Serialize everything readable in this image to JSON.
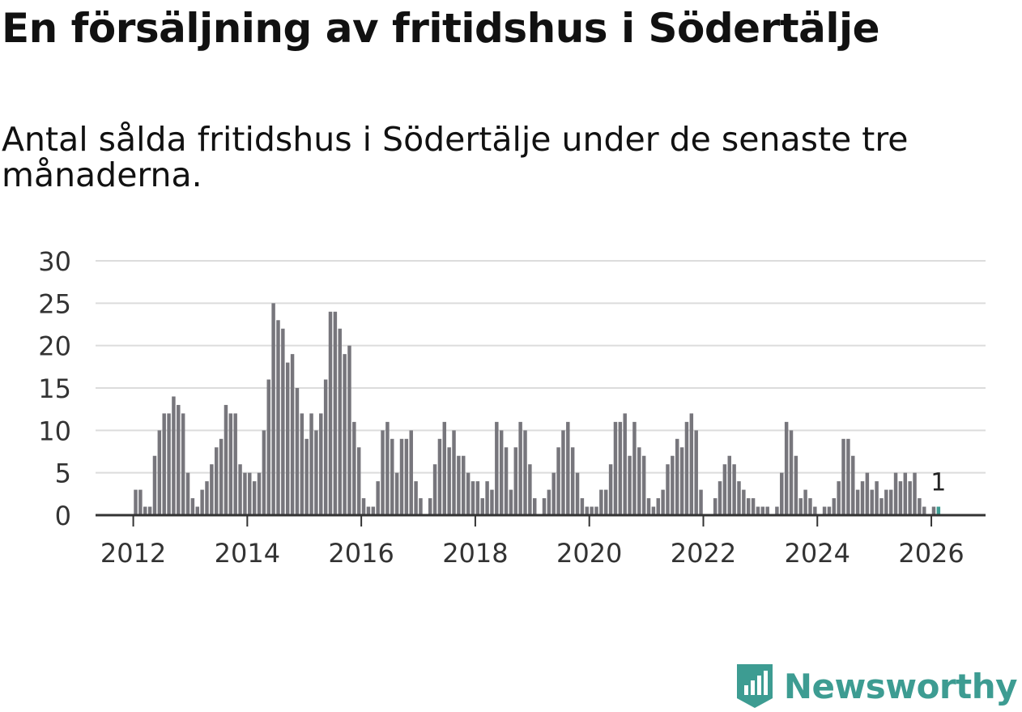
{
  "header": {
    "title": "En försäljning av fritidshus i Södertälje",
    "subtitle": "Antal sålda fritidshus i Södertälje under de senaste tre månaderna."
  },
  "brand": {
    "name": "Newsworthy",
    "color": "#3d9c92"
  },
  "colors": {
    "bar": "#77767c",
    "highlight": "#3d9c92",
    "grid": "#dcdcdc",
    "axis": "#333333"
  },
  "chart_data": {
    "type": "bar",
    "title": "Antal sålda fritidshus i Södertälje under de senaste tre månaderna.",
    "xlabel": "",
    "ylabel": "",
    "ylim": [
      0,
      30
    ],
    "yticks": [
      0,
      5,
      10,
      15,
      20,
      25,
      30
    ],
    "x_start": "2012-01",
    "xticks": [
      "2012",
      "2014",
      "2016",
      "2018",
      "2020",
      "2022",
      "2024",
      "2026"
    ],
    "annotation": {
      "label": "1",
      "index": 169
    },
    "values": [
      3,
      3,
      1,
      1,
      7,
      10,
      12,
      12,
      14,
      13,
      12,
      5,
      2,
      1,
      3,
      4,
      6,
      8,
      9,
      13,
      12,
      12,
      6,
      5,
      5,
      4,
      5,
      10,
      16,
      25,
      23,
      22,
      18,
      19,
      15,
      12,
      9,
      12,
      10,
      12,
      16,
      24,
      24,
      22,
      19,
      20,
      11,
      8,
      2,
      1,
      1,
      4,
      10,
      11,
      9,
      5,
      9,
      9,
      10,
      4,
      2,
      0,
      2,
      6,
      9,
      11,
      8,
      10,
      7,
      7,
      5,
      4,
      4,
      2,
      4,
      3,
      11,
      10,
      8,
      3,
      8,
      11,
      10,
      6,
      2,
      0,
      2,
      3,
      5,
      8,
      10,
      11,
      8,
      5,
      2,
      1,
      1,
      1,
      3,
      3,
      6,
      11,
      11,
      12,
      7,
      11,
      8,
      7,
      2,
      1,
      2,
      3,
      6,
      7,
      9,
      8,
      11,
      12,
      10,
      3,
      0,
      0,
      2,
      4,
      6,
      7,
      6,
      4,
      3,
      2,
      2,
      1,
      1,
      1,
      0,
      1,
      5,
      11,
      10,
      7,
      2,
      3,
      2,
      1,
      0,
      1,
      1,
      2,
      4,
      9,
      9,
      7,
      3,
      4,
      5,
      3,
      4,
      2,
      3,
      3,
      5,
      4,
      5,
      4,
      5,
      2,
      1,
      0,
      1,
      1
    ]
  }
}
